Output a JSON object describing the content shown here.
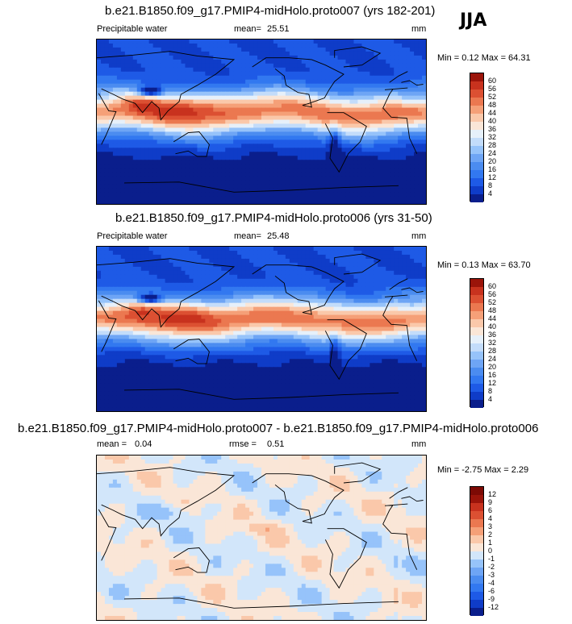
{
  "season": "JJA",
  "panels": [
    {
      "title": "b.e21.B1850.f09_g17.PMIP4-midHolo.proto007 (yrs 182-201)",
      "left_label": "Precipitable water",
      "mean_label": "mean=",
      "mean_value": "25.51",
      "units": "mm",
      "minmax": "Min =   0.12 Max =  64.31",
      "levels": [
        "4",
        "8",
        "12",
        "16",
        "20",
        "24",
        "28",
        "32",
        "36",
        "40",
        "44",
        "48",
        "52",
        "56",
        "60"
      ],
      "colors": [
        "#0a1e8c",
        "#0f3cc8",
        "#1e5ae6",
        "#3278f0",
        "#4b8cf0",
        "#6ea5f5",
        "#96c3fa",
        "#c3dcfa",
        "#e6f0fa",
        "#fae6d7",
        "#fac8aa",
        "#f5a078",
        "#eb7850",
        "#dc5032",
        "#c8321e",
        "#9b140a"
      ],
      "kind": "pw"
    },
    {
      "title": "b.e21.B1850.f09_g17.PMIP4-midHolo.proto006 (yrs 31-50)",
      "left_label": "Precipitable water",
      "mean_label": "mean=",
      "mean_value": "25.48",
      "units": "mm",
      "minmax": "Min =   0.13 Max =  63.70",
      "levels": [
        "4",
        "8",
        "12",
        "16",
        "20",
        "24",
        "28",
        "32",
        "36",
        "40",
        "44",
        "48",
        "52",
        "56",
        "60"
      ],
      "colors": [
        "#0a1e8c",
        "#0f3cc8",
        "#1e5ae6",
        "#3278f0",
        "#4b8cf0",
        "#6ea5f5",
        "#96c3fa",
        "#c3dcfa",
        "#e6f0fa",
        "#fae6d7",
        "#fac8aa",
        "#f5a078",
        "#eb7850",
        "#dc5032",
        "#c8321e",
        "#9b140a"
      ],
      "kind": "pw"
    },
    {
      "title": "b.e21.B1850.f09_g17.PMIP4-midHolo.proto007 - b.e21.B1850.f09_g17.PMIP4-midHolo.proto006",
      "left_label": "mean =",
      "mean_label": "",
      "mean_value": "0.04",
      "rmse_label": "rmse =",
      "rmse_value": "0.51",
      "units": "mm",
      "minmax": "Min =  -2.75 Max =   2.29",
      "levels": [
        "-12",
        "-9",
        "-6",
        "-4",
        "-3",
        "-2",
        "-1",
        "0",
        "1",
        "2",
        "3",
        "4",
        "6",
        "9",
        "12"
      ],
      "colors": [
        "#0a1e8c",
        "#0f3cc8",
        "#1e5ae6",
        "#3278f0",
        "#4b8cf0",
        "#6ea5f5",
        "#96c3fa",
        "#d2e6fa",
        "#fae6d7",
        "#fac8aa",
        "#f5a078",
        "#eb7850",
        "#dc5032",
        "#c8321e",
        "#9b140a",
        "#7d0a05"
      ],
      "kind": "diff"
    }
  ],
  "chart_data": [
    {
      "type": "heatmap",
      "title": "b.e21.B1850.f09_g17.PMIP4-midHolo.proto007 (yrs 182-201)",
      "variable": "Precipitable water",
      "units": "mm",
      "mean": 25.51,
      "min": 0.12,
      "max": 64.31,
      "contour_levels": [
        4,
        8,
        12,
        16,
        20,
        24,
        28,
        32,
        36,
        40,
        44,
        48,
        52,
        56,
        60
      ]
    },
    {
      "type": "heatmap",
      "title": "b.e21.B1850.f09_g17.PMIP4-midHolo.proto006 (yrs 31-50)",
      "variable": "Precipitable water",
      "units": "mm",
      "mean": 25.48,
      "min": 0.13,
      "max": 63.7,
      "contour_levels": [
        4,
        8,
        12,
        16,
        20,
        24,
        28,
        32,
        36,
        40,
        44,
        48,
        52,
        56,
        60
      ]
    },
    {
      "type": "heatmap",
      "title": "b.e21.B1850.f09_g17.PMIP4-midHolo.proto007 - b.e21.B1850.f09_g17.PMIP4-midHolo.proto006",
      "units": "mm",
      "mean": 0.04,
      "rmse": 0.51,
      "min": -2.75,
      "max": 2.29,
      "contour_levels": [
        -12,
        -9,
        -6,
        -4,
        -3,
        -2,
        -1,
        0,
        1,
        2,
        3,
        4,
        6,
        9,
        12
      ]
    }
  ]
}
